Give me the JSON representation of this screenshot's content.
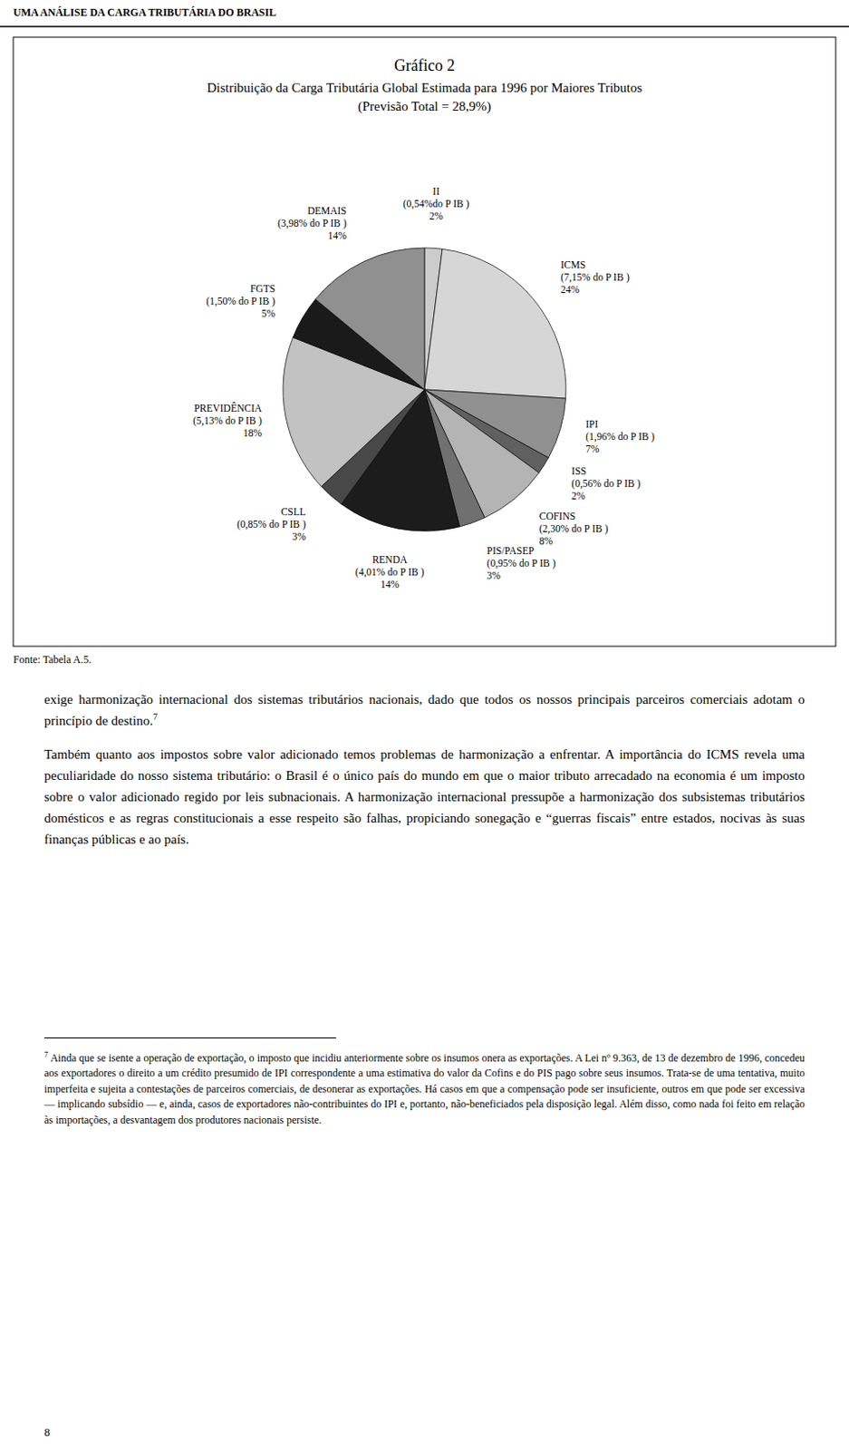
{
  "chart_data": {
    "type": "pie",
    "title": "Gráfico 2",
    "subtitle": [
      "Distribuição da Carga Tributária Global Estimada para 1996 por Maiores Tributos",
      "(Previsão Total = 28,9%)"
    ],
    "categories": [
      "II",
      "ICMS",
      "IPI",
      "ISS",
      "COFINS",
      "PIS/PASEP",
      "RENDA",
      "CSLL",
      "PREVIDÊNCIA",
      "FGTS",
      "DEMAIS"
    ],
    "sublabels": [
      "(0,54%do P IB )",
      "(7,15% do P IB )",
      "(1,96% do P IB )",
      "(0,56% do P IB )",
      "(2,30% do P IB )",
      "(0,95% do P IB )",
      "(4,01% do P IB )",
      "(0,85% do P IB )",
      "(5,13% do P IB )",
      "(1,50% do P IB )",
      "(3,98% do P IB )"
    ],
    "values": [
      2,
      24,
      7,
      2,
      8,
      3,
      14,
      3,
      18,
      5,
      14
    ],
    "value_labels": [
      "2%",
      "24%",
      "7%",
      "2%",
      "8%",
      "3%",
      "14%",
      "3%",
      "18%",
      "5%",
      "14%"
    ],
    "data_labels": true,
    "colors": [
      "#cccccc",
      "#d6d6d6",
      "#909090",
      "#606060",
      "#b4b4b4",
      "#707070",
      "#1c1c1c",
      "#484848",
      "#c2c2c2",
      "#1a1a1a",
      "#909090"
    ]
  },
  "header": "UMA ANÁLISE DA CARGA TRIBUTÁRIA DO BRASIL",
  "source": "Fonte: Tabela A.5.",
  "body": [
    "exige harmonização internacional dos sistemas tributários nacionais, dado que todos os nossos principais parceiros comerciais adotam o princípio de destino.",
    "Também quanto aos impostos sobre valor adicionado temos problemas de harmonização a enfrentar. A importância do ICMS revela uma peculiaridade do nosso sistema tributário: o Brasil é o único país do mundo em que o maior tributo arrecadado na economia é um imposto sobre o valor adicionado regido por leis subnacionais. A harmonização internacional pressupõe a harmonização dos subsistemas tributários domésticos e as regras constitucionais a esse respeito são falhas, propiciando sonegação e “guerras fiscais” entre estados, nocivas às suas finanças públicas e ao país."
  ],
  "footnote_ref": "7",
  "footnote": "Ainda que se isente a operação de exportação, o imposto que incidiu anteriormente sobre os insumos onera as exportações. A Lei nº 9.363, de 13 de dezembro de 1996, concedeu aos exportadores o direito a um crédito presumido de IPI correspondente a uma estimativa do valor da Cofins e do PIS pago sobre seus insumos. Trata-se de uma tentativa, muito imperfeita e sujeita a contestações de parceiros comerciais, de desonerar as exportações. Há casos em que a compensação pode ser insuficiente, outros em que pode ser excessiva — implicando subsídio — e, ainda, casos de exportadores não-contribuintes do IPI e, portanto, não-beneficiados pela disposição legal. Além disso, como nada foi feito em relação às importações, a desvantagem dos produtores nacionais persiste.",
  "page_number": "8"
}
